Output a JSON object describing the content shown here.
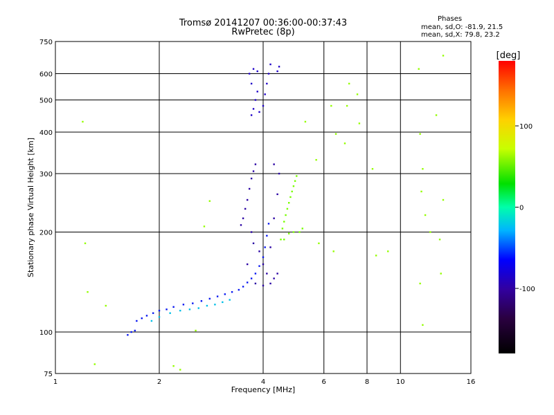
{
  "chart_data": {
    "type": "scatter",
    "title": "Tromsø 20141207 00:36:00-00:37:43",
    "subtitle": "RwPretec (8p)",
    "xlabel": "Frequency [MHz]",
    "ylabel": "Stationary phase Virtual Height [km]",
    "x_scale": "log",
    "y_scale": "log",
    "xlim": [
      1,
      16
    ],
    "ylim": [
      75,
      750
    ],
    "x_ticks": [
      1,
      2,
      4,
      6,
      8,
      10,
      16
    ],
    "x_tick_labels": [
      "1",
      "2",
      "4",
      "6",
      "8",
      "10",
      "16"
    ],
    "y_ticks": [
      75,
      100,
      200,
      300,
      400,
      500,
      600,
      750
    ],
    "y_tick_labels": [
      "75",
      "100",
      "200",
      "300",
      "400",
      "500",
      "600",
      "750"
    ],
    "grid": true,
    "phases": {
      "title": "Phases",
      "line_o": "mean, sd,O: -81.9, 21.5",
      "line_x": "mean, sd,X:  79.8, 23.2"
    },
    "colorbar": {
      "label": "[deg]",
      "range": [
        -180,
        180
      ],
      "ticks": [
        100,
        0,
        -100
      ],
      "tick_labels": [
        "100",
        "0",
        "-100"
      ]
    },
    "clusters": [
      {
        "name": "o-trace-low",
        "phase": -85,
        "points": [
          [
            1.62,
            98
          ],
          [
            1.66,
            100
          ],
          [
            1.7,
            101
          ],
          [
            1.72,
            108
          ],
          [
            1.78,
            110
          ],
          [
            1.84,
            112
          ],
          [
            1.92,
            114
          ],
          [
            2.0,
            116
          ],
          [
            2.1,
            117
          ],
          [
            2.2,
            119
          ],
          [
            2.35,
            121
          ],
          [
            2.5,
            122
          ],
          [
            2.65,
            124
          ],
          [
            2.8,
            126
          ],
          [
            2.95,
            128
          ],
          [
            3.1,
            130
          ],
          [
            3.25,
            132
          ],
          [
            3.4,
            134
          ],
          [
            3.5,
            137
          ],
          [
            3.6,
            141
          ],
          [
            3.7,
            145
          ],
          [
            3.8,
            150
          ],
          [
            3.9,
            158
          ],
          [
            4.0,
            168
          ],
          [
            4.05,
            180
          ],
          [
            4.1,
            195
          ],
          [
            4.15,
            212
          ]
        ]
      },
      {
        "name": "x-trace-low",
        "phase": -30,
        "points": [
          [
            1.9,
            108
          ],
          [
            2.0,
            111
          ],
          [
            2.15,
            114
          ],
          [
            2.3,
            116
          ],
          [
            2.45,
            117
          ],
          [
            2.6,
            118
          ],
          [
            2.75,
            120
          ],
          [
            2.9,
            121
          ],
          [
            3.05,
            123
          ],
          [
            3.2,
            125
          ]
        ]
      },
      {
        "name": "o-f-region",
        "phase": -110,
        "points": [
          [
            3.45,
            210
          ],
          [
            3.5,
            220
          ],
          [
            3.55,
            235
          ],
          [
            3.6,
            250
          ],
          [
            3.65,
            270
          ],
          [
            3.7,
            290
          ],
          [
            3.75,
            305
          ],
          [
            3.8,
            320
          ],
          [
            3.7,
            200
          ],
          [
            3.75,
            185
          ],
          [
            3.9,
            175
          ],
          [
            4.0,
            160
          ],
          [
            4.1,
            150
          ],
          [
            4.2,
            180
          ],
          [
            4.3,
            220
          ],
          [
            4.4,
            260
          ],
          [
            4.45,
            300
          ],
          [
            4.3,
            320
          ],
          [
            3.6,
            160
          ],
          [
            3.8,
            140
          ],
          [
            4.0,
            138
          ],
          [
            4.2,
            140
          ],
          [
            4.3,
            145
          ],
          [
            4.4,
            150
          ]
        ]
      },
      {
        "name": "x-f-region",
        "phase": 30,
        "points": [
          [
            4.5,
            190
          ],
          [
            4.55,
            205
          ],
          [
            4.6,
            215
          ],
          [
            4.65,
            225
          ],
          [
            4.7,
            235
          ],
          [
            4.75,
            245
          ],
          [
            4.8,
            255
          ],
          [
            4.85,
            265
          ],
          [
            4.9,
            275
          ],
          [
            4.95,
            285
          ],
          [
            5.0,
            295
          ],
          [
            4.6,
            190
          ],
          [
            4.75,
            198
          ],
          [
            4.9,
            200
          ],
          [
            5.1,
            200
          ],
          [
            5.2,
            205
          ]
        ]
      },
      {
        "name": "o-upper",
        "phase": -100,
        "points": [
          [
            3.7,
            450
          ],
          [
            3.75,
            470
          ],
          [
            3.8,
            500
          ],
          [
            3.85,
            530
          ],
          [
            3.7,
            560
          ],
          [
            3.65,
            600
          ],
          [
            3.75,
            620
          ],
          [
            4.0,
            480
          ],
          [
            4.05,
            520
          ],
          [
            4.1,
            560
          ],
          [
            4.15,
            600
          ],
          [
            4.2,
            640
          ],
          [
            4.4,
            610
          ],
          [
            4.45,
            630
          ],
          [
            3.9,
            460
          ],
          [
            3.85,
            610
          ]
        ]
      },
      {
        "name": "scattered-misc",
        "phase": 40,
        "points": [
          [
            1.2,
            430
          ],
          [
            1.22,
            185
          ],
          [
            1.24,
            132
          ],
          [
            1.3,
            80
          ],
          [
            1.4,
            120
          ],
          [
            2.2,
            79
          ],
          [
            2.3,
            77
          ],
          [
            2.55,
            101
          ],
          [
            2.7,
            208
          ],
          [
            2.8,
            248
          ],
          [
            5.3,
            430
          ],
          [
            5.7,
            330
          ],
          [
            5.8,
            185
          ],
          [
            6.3,
            480
          ],
          [
            6.4,
            175
          ],
          [
            6.5,
            395
          ],
          [
            6.9,
            370
          ],
          [
            7.0,
            480
          ],
          [
            7.1,
            560
          ],
          [
            7.5,
            520
          ],
          [
            7.6,
            425
          ],
          [
            8.3,
            310
          ],
          [
            8.5,
            170
          ],
          [
            9.2,
            175
          ],
          [
            11.3,
            620
          ],
          [
            11.4,
            395
          ],
          [
            11.6,
            310
          ],
          [
            11.8,
            225
          ],
          [
            11.4,
            140
          ],
          [
            11.6,
            105
          ],
          [
            11.5,
            265
          ],
          [
            12.2,
            200
          ],
          [
            12.7,
            450
          ],
          [
            13.0,
            190
          ],
          [
            13.1,
            150
          ],
          [
            13.3,
            250
          ],
          [
            13.3,
            680
          ]
        ]
      }
    ]
  }
}
